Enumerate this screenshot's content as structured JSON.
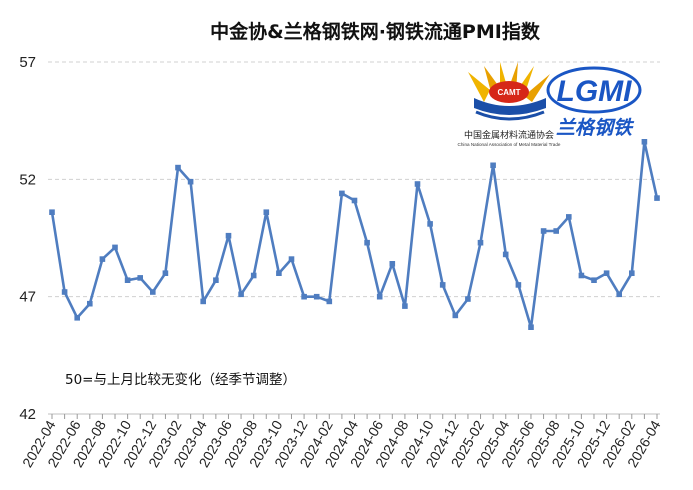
{
  "chart_data": {
    "type": "line",
    "title": "中金协&兰格钢铁网·钢铁流通PMI指数",
    "xlabel": "",
    "ylabel": "",
    "ylim": [
      42,
      57
    ],
    "yticks": [
      42,
      47,
      52,
      57
    ],
    "grid": true,
    "legend": "none",
    "annotation": "50=与上月比较无变化（经季节调整）",
    "x_tick_labels": [
      "2022-04",
      "2022-06",
      "2022-08",
      "2022-10",
      "2022-12",
      "2023-02",
      "2023-04",
      "2023-06",
      "2023-08",
      "2023-10",
      "2023-12",
      "2024-02",
      "2024-04",
      "2024-06",
      "2024-08",
      "2024-10",
      "2024-12",
      "2025-02",
      "2025-04",
      "2025-06",
      "2025-08",
      "2025-10",
      "2025-12",
      "2026-02",
      "2026-04"
    ],
    "x": [
      "2022-04",
      "2022-05",
      "2022-06",
      "2022-07",
      "2022-08",
      "2022-09",
      "2022-10",
      "2022-11",
      "2022-12",
      "2023-01",
      "2023-02",
      "2023-03",
      "2023-04",
      "2023-05",
      "2023-06",
      "2023-07",
      "2023-08",
      "2023-09",
      "2023-10",
      "2023-11",
      "2023-12",
      "2024-01",
      "2024-02",
      "2024-03",
      "2024-04",
      "2024-05",
      "2024-06",
      "2024-07",
      "2024-08",
      "2024-09",
      "2024-10",
      "2024-11",
      "2024-12",
      "2025-01",
      "2025-02",
      "2025-03",
      "2025-04",
      "2025-05",
      "2025-06",
      "2025-07",
      "2025-08",
      "2025-09",
      "2025-10",
      "2025-11",
      "2025-12",
      "2026-01",
      "2026-02",
      "2026-03",
      "2026-04"
    ],
    "series": [
      {
        "name": "",
        "color": "#4f7dc0",
        "values": [
          50.6,
          47.2,
          46.1,
          46.7,
          48.6,
          49.1,
          47.7,
          47.8,
          47.2,
          48.0,
          52.5,
          51.9,
          46.8,
          47.7,
          49.6,
          47.1,
          47.9,
          50.6,
          48.0,
          48.6,
          47.0,
          47.0,
          46.8,
          51.4,
          51.1,
          49.3,
          47.0,
          48.4,
          46.6,
          51.8,
          50.1,
          47.5,
          46.2,
          46.9,
          49.3,
          52.6,
          48.8,
          47.5,
          45.7,
          49.8,
          49.8,
          50.4,
          47.9,
          47.7,
          48.0,
          47.1,
          48.0,
          53.6,
          51.2
        ]
      }
    ]
  },
  "logos": {
    "camt": {
      "badge_text": "CAMT",
      "name_cn": "中国金属材料流通协会",
      "name_en": "China National Association of Metal Material Trade",
      "color_primary": "#1b4fa8",
      "color_accent": "#d62718",
      "color_gold": "#f0b400"
    },
    "lgmi": {
      "wordmark": "LGMI",
      "name_cn": "兰格钢铁",
      "color_primary": "#1a56c4"
    }
  }
}
